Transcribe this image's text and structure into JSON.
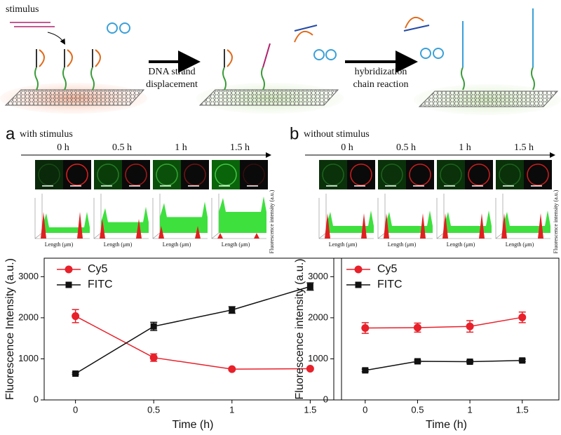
{
  "schematic": {
    "stimulus": "stimulus",
    "step1": [
      "DNA strand",
      "displacement"
    ],
    "step2": [
      "hybridization",
      "chain reaction"
    ]
  },
  "panels": [
    {
      "letter": "a",
      "condition": "with stimulus",
      "times": [
        "0 h",
        "0.5 h",
        "1 h",
        "1.5 h"
      ],
      "profile_x_label": "Length (μm)",
      "profile_y_label": "Fluorescence intensity (a.u.)"
    },
    {
      "letter": "b",
      "condition": "without stimulus",
      "times": [
        "0 h",
        "0.5 h",
        "1 h",
        "1.5 h"
      ],
      "profile_x_label": "Length (μm)",
      "profile_y_label": "Fluorescence intensity (a.u.)"
    }
  ],
  "chart_data": [
    {
      "type": "line",
      "xlabel": "Time (h)",
      "ylabel": "Fluorescence Intensity (a.u.)",
      "x": [
        0,
        0.5,
        1,
        1.5
      ],
      "xlim": [
        -0.2,
        1.7
      ],
      "xticks": [
        0,
        0.5,
        1,
        1.5
      ],
      "ylim": [
        0,
        3450
      ],
      "yticks": [
        0,
        1000,
        2000,
        3000
      ],
      "legend": "upper left",
      "series": [
        {
          "name": "Cy5",
          "color": "#e8202a",
          "marker": "circle",
          "values": [
            2040,
            1030,
            750,
            760
          ],
          "errors": [
            160,
            90,
            30,
            20
          ]
        },
        {
          "name": "FITC",
          "color": "#111111",
          "marker": "square",
          "values": [
            640,
            1790,
            2190,
            2760
          ],
          "errors": [
            20,
            100,
            80,
            90
          ]
        }
      ]
    },
    {
      "type": "line",
      "xlabel": "Time (h)",
      "ylabel": "Fluorescence intensity (a.u.)",
      "x": [
        0,
        0.5,
        1,
        1.5
      ],
      "xlim": [
        -0.3,
        1.85
      ],
      "xticks": [
        0,
        0.5,
        1,
        1.5
      ],
      "ylim": [
        0,
        3450
      ],
      "yticks": [
        0,
        1000,
        2000,
        3000
      ],
      "legend": "upper left",
      "series": [
        {
          "name": "Cy5",
          "color": "#e8202a",
          "marker": "circle",
          "values": [
            1750,
            1760,
            1790,
            2010
          ],
          "errors": [
            130,
            110,
            140,
            130
          ]
        },
        {
          "name": "FITC",
          "color": "#111111",
          "marker": "square",
          "values": [
            720,
            940,
            930,
            960
          ],
          "errors": [
            30,
            30,
            30,
            30
          ]
        }
      ]
    }
  ]
}
